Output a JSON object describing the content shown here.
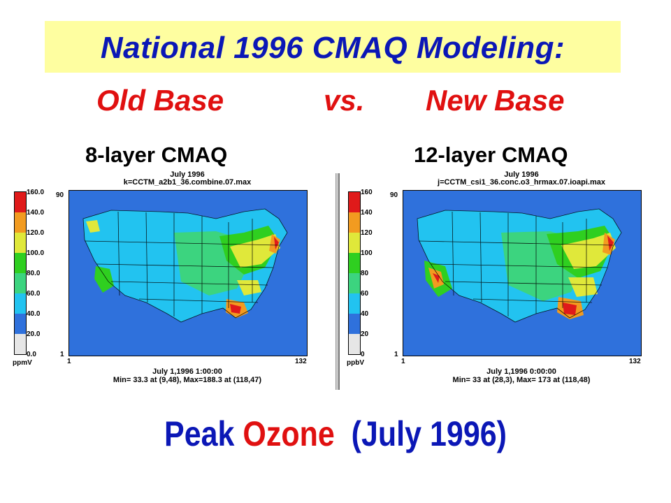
{
  "slide": {
    "title": "National 1996 CMAQ Modeling:",
    "subtitle_left": "Old Base",
    "subtitle_mid": "vs.",
    "subtitle_right": "New Base",
    "panel_left_label": "8-layer CMAQ",
    "panel_right_label": "12-layer CMAQ",
    "bottom_part1": "Peak ",
    "bottom_part2": "Ozone",
    "bottom_part3": "  (July 1996)"
  },
  "colors": {
    "title_band": "#fefea0",
    "title": "#0b17b6",
    "accent_red": "#e01010",
    "legend": [
      "#e6e6e6",
      "#2f71dc",
      "#22c3f0",
      "#3cd47f",
      "#2fcf20",
      "#e0e83a",
      "#f29b20",
      "#e01a1a"
    ]
  },
  "panels": [
    {
      "header_line1": "July 1996",
      "header_line2": "k=CCTM_a2b1_36.combine.07.max",
      "legend_ticks": [
        "160.0",
        "140.0",
        "120.0",
        "100.0",
        "80.0",
        "60.0",
        "40.0",
        "20.0",
        "0.0"
      ],
      "unit": "ppmV",
      "y_max": "90",
      "y_min": "1",
      "x_min": "1",
      "x_max": "132",
      "footer_line1": "July 1,1996 1:00:00",
      "footer_line2": "Min= 33.3 at (9,48), Max=188.3 at (118,47)"
    },
    {
      "header_line1": "July 1996",
      "header_line2": "j=CCTM_csi1_36.conc.o3_hrmax.07.ioapi.max",
      "legend_ticks": [
        "160",
        "140",
        "120",
        "100",
        "80",
        "60",
        "40",
        "20",
        "0"
      ],
      "unit": "ppbV",
      "y_max": "90",
      "y_min": "1",
      "x_min": "1",
      "x_max": "132",
      "footer_line1": "July 1,1996 0:00:00",
      "footer_line2": "Min=   33 at (28,3), Max=  173 at (118,48)"
    }
  ]
}
